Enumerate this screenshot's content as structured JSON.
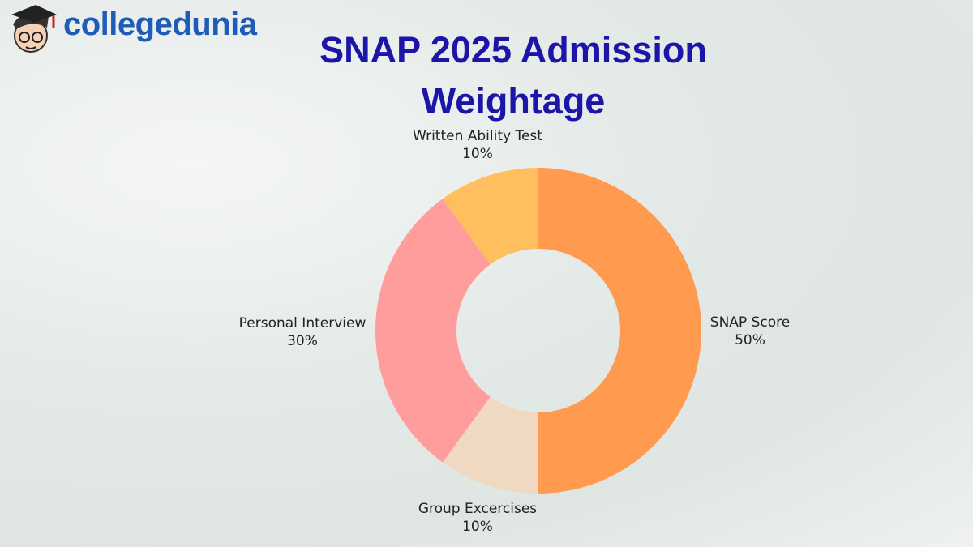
{
  "brand": "collegedunia",
  "chart_data": {
    "type": "donut",
    "title": "SNAP 2025 Admission Weightage",
    "categories": [
      "SNAP Score",
      "Group Excercises",
      "Personal Interview",
      "Written Ability Test"
    ],
    "values": [
      50,
      10,
      30,
      10
    ],
    "value_labels": [
      "50%",
      "10%",
      "30%",
      "10%"
    ],
    "colors": [
      "#ff9a4f",
      "#f0d9c2",
      "#ff9c9c",
      "#ffbf5e"
    ]
  }
}
